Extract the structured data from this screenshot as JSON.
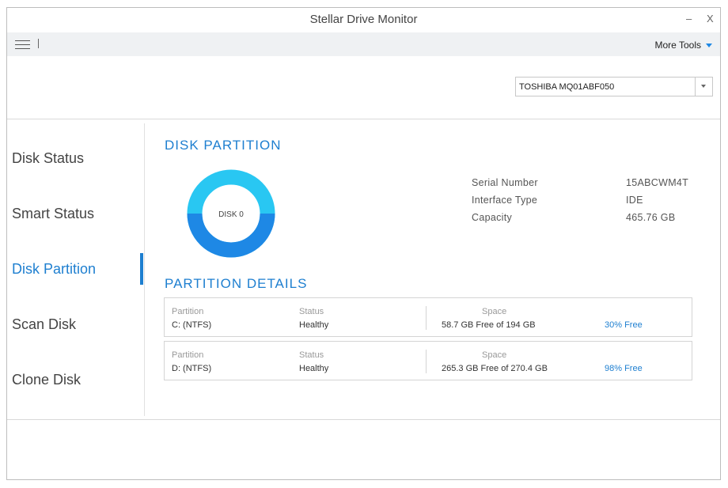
{
  "window": {
    "title": "Stellar Drive Monitor",
    "minimize": "–",
    "close": "X"
  },
  "menubar": {
    "more_tools": "More Tools"
  },
  "drive_select": {
    "value": "TOSHIBA MQ01ABF050"
  },
  "sidebar": {
    "items": [
      {
        "label": "Disk Status",
        "active": false
      },
      {
        "label": "Smart Status",
        "active": false
      },
      {
        "label": "Disk Partition",
        "active": true
      },
      {
        "label": "Scan Disk",
        "active": false
      },
      {
        "label": "Clone Disk",
        "active": false
      }
    ]
  },
  "disk_partition": {
    "title": "DISK PARTITION",
    "donut_label": "DISK 0",
    "info": [
      {
        "label": "Serial Number",
        "value": "15ABCWM4T"
      },
      {
        "label": "Interface Type",
        "value": "IDE"
      },
      {
        "label": "Capacity",
        "value": "465.76 GB"
      }
    ],
    "colors": {
      "used": "#1e88e5",
      "free": "#29c7f2"
    }
  },
  "partition_details": {
    "title": "PARTITION DETAILS",
    "headers": {
      "partition": "Partition",
      "status": "Status",
      "space": "Space"
    },
    "rows": [
      {
        "partition": "C: (NTFS)",
        "status": "Healthy",
        "space": "58.7 GB Free of 194 GB",
        "free": "30% Free"
      },
      {
        "partition": "D: (NTFS)",
        "status": "Healthy",
        "space": "265.3 GB Free of 270.4 GB",
        "free": "98% Free"
      }
    ]
  }
}
